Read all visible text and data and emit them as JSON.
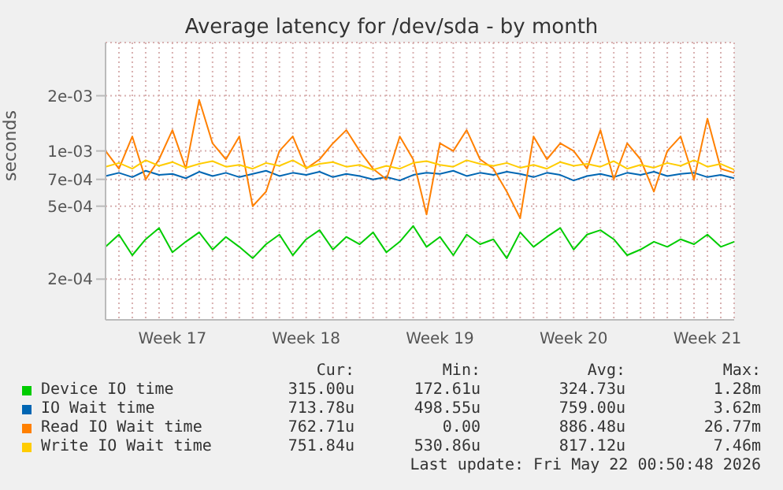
{
  "chart_data": {
    "type": "line",
    "title": "Average latency for /dev/sda - by month",
    "ylabel": "seconds",
    "categories": [
      null,
      null,
      null,
      null,
      null,
      "Week 17",
      null,
      null,
      null,
      null,
      null,
      null,
      null,
      null,
      null,
      "Week 18",
      null,
      null,
      null,
      null,
      null,
      null,
      null,
      null,
      null,
      "Week 19",
      null,
      null,
      null,
      null,
      null,
      null,
      null,
      null,
      null,
      "Week 20",
      null,
      null,
      null,
      null,
      null,
      null,
      null,
      null,
      null,
      "Week 21",
      null,
      null
    ],
    "series": [
      {
        "name": "Device IO time",
        "color": "#00cc00",
        "values": [
          0.0003,
          0.00035,
          0.00027,
          0.00033,
          0.00038,
          0.00028,
          0.00032,
          0.00036,
          0.00029,
          0.00034,
          0.0003,
          0.00026,
          0.00031,
          0.00035,
          0.00027,
          0.00033,
          0.00037,
          0.00029,
          0.00034,
          0.00031,
          0.00036,
          0.00028,
          0.00032,
          0.00039,
          0.0003,
          0.00034,
          0.00027,
          0.00035,
          0.00031,
          0.00033,
          0.00026,
          0.00036,
          0.0003,
          0.00034,
          0.00038,
          0.00029,
          0.00035,
          0.00037,
          0.00033,
          0.00027,
          0.00029,
          0.00032,
          0.0003,
          0.00033,
          0.00031,
          0.00035,
          0.0003,
          0.00032
        ]
      },
      {
        "name": "IO Wait time",
        "color": "#0066b3",
        "values": [
          0.00073,
          0.00076,
          0.00072,
          0.00078,
          0.00074,
          0.00075,
          0.00071,
          0.00077,
          0.00073,
          0.00076,
          0.00072,
          0.00075,
          0.00078,
          0.00073,
          0.00076,
          0.00074,
          0.00077,
          0.00072,
          0.00075,
          0.00073,
          0.0007,
          0.00072,
          0.00069,
          0.00074,
          0.00076,
          0.00075,
          0.00078,
          0.00073,
          0.00076,
          0.00074,
          0.00077,
          0.00075,
          0.00072,
          0.00076,
          0.00074,
          0.00069,
          0.00073,
          0.00075,
          0.00072,
          0.00076,
          0.00074,
          0.00077,
          0.00073,
          0.00075,
          0.00076,
          0.00072,
          0.00074,
          0.00071
        ]
      },
      {
        "name": "Read IO Wait time",
        "color": "#ff8000",
        "values": [
          0.001,
          0.0008,
          0.0012,
          0.0007,
          0.0009,
          0.0013,
          0.0008,
          0.0019,
          0.0011,
          0.0009,
          0.0012,
          0.0005,
          0.0006,
          0.001,
          0.0012,
          0.0008,
          0.0009,
          0.0011,
          0.0013,
          0.001,
          0.0008,
          0.0007,
          0.0012,
          0.0009,
          0.00045,
          0.0011,
          0.001,
          0.0013,
          0.0009,
          0.0008,
          0.0006,
          0.00043,
          0.0012,
          0.0009,
          0.0011,
          0.001,
          0.0008,
          0.0013,
          0.0007,
          0.0011,
          0.0009,
          0.0006,
          0.001,
          0.0012,
          0.0007,
          0.0015,
          0.0008,
          0.00076
        ]
      },
      {
        "name": "Write IO Wait time",
        "color": "#ffcc00",
        "values": [
          0.00082,
          0.00086,
          0.0008,
          0.00089,
          0.00083,
          0.00087,
          0.00081,
          0.00085,
          0.00088,
          0.00082,
          0.00084,
          0.0008,
          0.00086,
          0.00083,
          0.00089,
          0.00081,
          0.00085,
          0.00087,
          0.00082,
          0.00084,
          0.00079,
          0.00083,
          0.0008,
          0.00086,
          0.00088,
          0.00084,
          0.00082,
          0.00089,
          0.00085,
          0.00083,
          0.00086,
          0.00081,
          0.00084,
          0.0008,
          0.00087,
          0.00083,
          0.00085,
          0.00082,
          0.00088,
          0.0008,
          0.00084,
          0.00081,
          0.00086,
          0.00083,
          0.00089,
          0.00082,
          0.00085,
          0.00079
        ]
      }
    ],
    "log": "y",
    "ylim": [
      0.00012,
      0.0039
    ],
    "yticks": [
      {
        "value": 0.0002,
        "label": "2e-04"
      },
      {
        "value": 0.0005,
        "label": "5e-04"
      },
      {
        "value": 0.0007,
        "label": "7e-04"
      },
      {
        "value": 0.001,
        "label": "1e-03"
      },
      {
        "value": 0.002,
        "label": "2e-03"
      }
    ],
    "grid": true,
    "legend": "bottom",
    "marker": "none",
    "line_style": "solid",
    "annotations": [
      "Cur:",
      "Min:",
      "Avg:",
      "Max:",
      "315.00u",
      "172.61u",
      "324.73u",
      "1.28m",
      "713.78u",
      "498.55u",
      "759.00u",
      "3.62m",
      "762.71u",
      "0.00",
      "886.48u",
      "26.77m",
      "751.84u",
      "530.86u",
      "817.12u",
      "7.46m",
      "Last update: Fri May 22 00:50:48 2026"
    ]
  }
}
